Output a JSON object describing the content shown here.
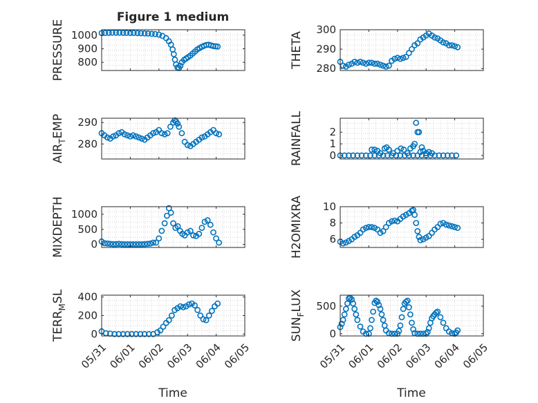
{
  "figure_title": "Figure 1 medium",
  "marker_color": "#0072BD",
  "xaxis_label": "Time",
  "xticks": [
    "05/31",
    "06/01",
    "06/02",
    "06/03",
    "06/04",
    "06/05"
  ],
  "chart_data": [
    {
      "id": "pressure",
      "type": "scatter",
      "marker": "circle-open",
      "ylabel": "PRESSURE",
      "ylim": [
        740,
        1040
      ],
      "yticks": [
        800,
        900,
        1000
      ],
      "grid": true,
      "xlim": [
        0,
        5
      ],
      "x": [
        0.0,
        0.12,
        0.25,
        0.37,
        0.5,
        0.62,
        0.75,
        0.87,
        1.0,
        1.12,
        1.25,
        1.37,
        1.5,
        1.62,
        1.75,
        1.87,
        2.0,
        2.12,
        2.25,
        2.35,
        2.42,
        2.48,
        2.52,
        2.56,
        2.6,
        2.65,
        2.7,
        2.75,
        2.8,
        2.88,
        2.95,
        3.02,
        3.1,
        3.18,
        3.26,
        3.34,
        3.42,
        3.5,
        3.58,
        3.66,
        3.74,
        3.82,
        3.9,
        3.98,
        4.05
      ],
      "y": [
        1015,
        1016,
        1017,
        1018,
        1018,
        1018,
        1017,
        1017,
        1016,
        1016,
        1015,
        1014,
        1013,
        1012,
        1010,
        1008,
        1004,
        995,
        978,
        955,
        930,
        895,
        860,
        820,
        785,
        762,
        758,
        775,
        800,
        818,
        828,
        838,
        850,
        865,
        880,
        895,
        905,
        915,
        922,
        928,
        930,
        925,
        920,
        918,
        916
      ]
    },
    {
      "id": "theta",
      "type": "scatter",
      "marker": "circle-open",
      "ylabel": "THETA",
      "ylim": [
        279,
        300
      ],
      "yticks": [
        280,
        290,
        300
      ],
      "grid": true,
      "xlim": [
        0,
        5
      ],
      "x": [
        0.0,
        0.1,
        0.2,
        0.3,
        0.4,
        0.5,
        0.6,
        0.7,
        0.8,
        0.9,
        1.0,
        1.1,
        1.2,
        1.3,
        1.4,
        1.5,
        1.6,
        1.7,
        1.8,
        1.9,
        2.0,
        2.1,
        2.2,
        2.3,
        2.4,
        2.5,
        2.6,
        2.7,
        2.8,
        2.9,
        3.0,
        3.1,
        3.2,
        3.3,
        3.4,
        3.5,
        3.6,
        3.7,
        3.8,
        3.9,
        4.0,
        4.1
      ],
      "y": [
        283.5,
        281.5,
        281,
        282,
        282.5,
        283.5,
        283,
        283.5,
        283,
        282.5,
        283,
        283,
        282.5,
        282.5,
        282,
        281.5,
        281,
        281.5,
        284,
        285,
        285.5,
        285,
        285.5,
        286,
        288,
        290,
        292,
        293,
        295,
        296,
        297,
        298,
        297,
        296,
        295.5,
        294.5,
        293.5,
        293,
        292,
        292,
        291.5,
        291
      ]
    },
    {
      "id": "air_temp",
      "type": "scatter",
      "marker": "circle-open",
      "ylabel": "AIR_TEMP",
      "ylim": [
        273,
        292
      ],
      "yticks": [
        280,
        290
      ],
      "grid": true,
      "xlim": [
        0,
        5
      ],
      "x": [
        0.0,
        0.1,
        0.2,
        0.3,
        0.4,
        0.5,
        0.6,
        0.7,
        0.8,
        0.9,
        1.0,
        1.1,
        1.2,
        1.3,
        1.4,
        1.5,
        1.6,
        1.7,
        1.8,
        1.9,
        2.0,
        2.1,
        2.2,
        2.3,
        2.4,
        2.5,
        2.55,
        2.6,
        2.65,
        2.7,
        2.8,
        2.9,
        3.0,
        3.1,
        3.2,
        3.3,
        3.4,
        3.5,
        3.6,
        3.7,
        3.8,
        3.9,
        4.0,
        4.1
      ],
      "y": [
        285,
        284,
        283,
        282.5,
        283.5,
        284,
        285,
        285.5,
        284.5,
        284,
        283.5,
        284,
        283.5,
        283,
        282.5,
        282,
        283,
        284,
        285,
        285.5,
        286.5,
        285,
        284.5,
        285,
        288,
        290,
        291,
        290.5,
        289.5,
        288,
        285,
        281,
        279.5,
        279,
        280,
        281,
        282,
        283,
        283.5,
        284.5,
        285.5,
        286.5,
        285,
        284.5
      ]
    },
    {
      "id": "rainfall",
      "type": "scatter",
      "marker": "circle-open",
      "ylabel": "RAINFALL",
      "ylim": [
        -0.3,
        3.2
      ],
      "yticks": [
        0,
        1,
        2
      ],
      "grid": true,
      "xlim": [
        0,
        5
      ],
      "x": [
        0.0,
        0.15,
        0.3,
        0.45,
        0.6,
        0.75,
        0.9,
        1.05,
        1.2,
        1.35,
        1.5,
        1.65,
        1.8,
        1.95,
        2.1,
        2.25,
        2.4,
        2.55,
        2.7,
        2.85,
        3.0,
        3.15,
        3.3,
        3.45,
        3.6,
        3.75,
        3.9,
        4.05,
        1.1,
        1.2,
        1.3,
        1.4,
        1.55,
        1.62,
        1.7,
        1.85,
        2.0,
        2.12,
        2.22,
        2.35,
        2.45,
        2.55,
        2.6,
        2.65,
        2.7,
        2.75,
        2.8,
        2.85,
        2.9,
        3.0,
        3.1,
        3.2
      ],
      "y": [
        0,
        0,
        0,
        0,
        0,
        0,
        0,
        0,
        0,
        0,
        0,
        0,
        0,
        0,
        0,
        0,
        0,
        0,
        0,
        0,
        0,
        0,
        0,
        0,
        0,
        0,
        0,
        0,
        0.5,
        0.5,
        0.4,
        0.2,
        0.6,
        0.7,
        0.5,
        0.2,
        0.4,
        0.6,
        0.5,
        0.2,
        0.6,
        0.8,
        1.0,
        2.8,
        2.0,
        2.0,
        0.3,
        0.7,
        0.4,
        0.2,
        0.3,
        0.2
      ]
    },
    {
      "id": "mixdepth",
      "type": "scatter",
      "marker": "circle-open",
      "ylabel": "MIXDEPTH",
      "ylim": [
        -100,
        1250
      ],
      "yticks": [
        0,
        500,
        1000
      ],
      "grid": true,
      "xlim": [
        0,
        5
      ],
      "x": [
        0.0,
        0.1,
        0.2,
        0.3,
        0.4,
        0.5,
        0.6,
        0.7,
        0.8,
        0.9,
        1.0,
        1.1,
        1.2,
        1.3,
        1.4,
        1.5,
        1.6,
        1.7,
        1.8,
        1.9,
        2.0,
        2.1,
        2.2,
        2.28,
        2.35,
        2.42,
        2.5,
        2.58,
        2.66,
        2.74,
        2.82,
        2.9,
        3.0,
        3.1,
        3.2,
        3.3,
        3.4,
        3.5,
        3.6,
        3.7,
        3.8,
        3.9,
        4.0,
        4.1
      ],
      "y": [
        100,
        40,
        30,
        20,
        10,
        10,
        20,
        10,
        5,
        5,
        5,
        5,
        5,
        5,
        5,
        10,
        20,
        30,
        60,
        60,
        200,
        450,
        700,
        950,
        1200,
        1050,
        700,
        550,
        600,
        450,
        350,
        300,
        400,
        450,
        300,
        280,
        350,
        550,
        750,
        800,
        650,
        400,
        200,
        60
      ]
    },
    {
      "id": "h2omixra",
      "type": "scatter",
      "marker": "circle-open",
      "ylabel": "H2OMIXRA",
      "ylim": [
        5,
        10
      ],
      "yticks": [
        6,
        8,
        10
      ],
      "grid": true,
      "xlim": [
        0,
        5
      ],
      "x": [
        0.0,
        0.1,
        0.2,
        0.3,
        0.4,
        0.5,
        0.6,
        0.7,
        0.8,
        0.9,
        1.0,
        1.1,
        1.2,
        1.3,
        1.4,
        1.5,
        1.6,
        1.7,
        1.8,
        1.9,
        2.0,
        2.1,
        2.2,
        2.3,
        2.4,
        2.5,
        2.55,
        2.6,
        2.65,
        2.7,
        2.75,
        2.8,
        2.9,
        3.0,
        3.1,
        3.2,
        3.3,
        3.4,
        3.5,
        3.6,
        3.7,
        3.8,
        3.9,
        4.0,
        4.1
      ],
      "y": [
        5.7,
        5.5,
        5.6,
        5.8,
        6.0,
        6.3,
        6.5,
        6.8,
        7.2,
        7.4,
        7.5,
        7.5,
        7.4,
        7.2,
        6.8,
        7.0,
        7.5,
        8.0,
        8.2,
        8.3,
        8.2,
        8.5,
        8.8,
        9.0,
        9.2,
        9.5,
        9.6,
        9.0,
        8.0,
        7.0,
        6.3,
        5.9,
        6.0,
        6.2,
        6.4,
        6.8,
        7.2,
        7.5,
        7.9,
        8.0,
        7.8,
        7.7,
        7.6,
        7.5,
        7.4
      ]
    },
    {
      "id": "terr_msl",
      "type": "scatter",
      "marker": "circle-open",
      "ylabel": "TERR_MSL",
      "ylim": [
        -20,
        420
      ],
      "yticks": [
        0,
        200,
        400
      ],
      "grid": true,
      "xlim": [
        0,
        5
      ],
      "x": [
        0.0,
        0.15,
        0.3,
        0.45,
        0.6,
        0.75,
        0.9,
        1.05,
        1.2,
        1.35,
        1.5,
        1.65,
        1.8,
        1.95,
        2.05,
        2.15,
        2.25,
        2.35,
        2.45,
        2.55,
        2.65,
        2.75,
        2.85,
        2.95,
        3.05,
        3.15,
        3.25,
        3.35,
        3.45,
        3.55,
        3.65,
        3.75,
        3.85,
        3.95,
        4.05
      ],
      "y": [
        30,
        10,
        5,
        0,
        0,
        0,
        0,
        0,
        0,
        0,
        0,
        0,
        0,
        20,
        40,
        80,
        120,
        150,
        200,
        260,
        280,
        300,
        290,
        300,
        320,
        330,
        310,
        260,
        200,
        160,
        150,
        200,
        250,
        300,
        330
      ]
    },
    {
      "id": "sun_flux",
      "type": "scatter",
      "marker": "circle-open",
      "ylabel": "SUN_FLUX",
      "ylim": [
        -40,
        700
      ],
      "yticks": [
        0,
        500
      ],
      "grid": true,
      "xlim": [
        0,
        5
      ],
      "x": [
        0.0,
        0.05,
        0.1,
        0.15,
        0.2,
        0.25,
        0.3,
        0.35,
        0.4,
        0.45,
        0.5,
        0.55,
        0.6,
        0.7,
        0.8,
        0.9,
        1.0,
        1.05,
        1.1,
        1.15,
        1.2,
        1.25,
        1.3,
        1.35,
        1.4,
        1.45,
        1.5,
        1.55,
        1.6,
        1.7,
        1.8,
        1.9,
        2.0,
        2.05,
        2.1,
        2.15,
        2.2,
        2.25,
        2.3,
        2.35,
        2.4,
        2.45,
        2.5,
        2.55,
        2.6,
        2.7,
        2.8,
        2.9,
        3.0,
        3.05,
        3.1,
        3.15,
        3.2,
        3.25,
        3.3,
        3.35,
        3.4,
        3.5,
        3.6,
        3.7,
        3.8,
        3.9,
        4.0,
        4.05,
        4.1
      ],
      "y": [
        120,
        180,
        250,
        350,
        450,
        550,
        640,
        650,
        620,
        550,
        450,
        350,
        250,
        130,
        40,
        0,
        0,
        100,
        250,
        400,
        560,
        600,
        580,
        520,
        450,
        350,
        250,
        150,
        60,
        10,
        0,
        0,
        0,
        50,
        150,
        300,
        450,
        550,
        580,
        600,
        480,
        350,
        200,
        80,
        10,
        0,
        0,
        0,
        0,
        30,
        100,
        200,
        280,
        320,
        350,
        380,
        400,
        300,
        200,
        100,
        40,
        10,
        0,
        20,
        60
      ]
    }
  ],
  "ylabel_parts": {
    "air_temp": {
      "pre": "AIR",
      "sub": "T",
      "post": "EMP"
    },
    "terr_msl": {
      "pre": "TERR",
      "sub": "M",
      "post": "SL"
    },
    "sun_flux": {
      "pre": "SUN",
      "sub": "F",
      "post": "LUX"
    }
  }
}
